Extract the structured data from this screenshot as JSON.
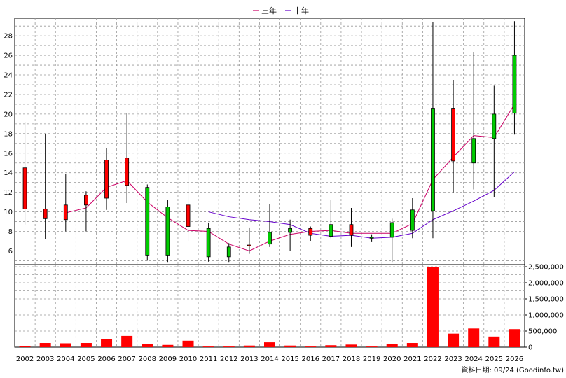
{
  "chart_data": [
    {
      "type": "candlestick",
      "legend": [
        {
          "name": "三年",
          "color": "#cc0066"
        },
        {
          "name": "十年",
          "color": "#6600cc"
        }
      ],
      "legend_position": "top-center",
      "ylim": [
        4.6,
        29.8
      ],
      "yticks": [
        6,
        8,
        10,
        12,
        14,
        16,
        18,
        20,
        22,
        24,
        26,
        28
      ],
      "grid": true,
      "categories": [
        "2002",
        "2003",
        "2004",
        "2005",
        "2006",
        "2007",
        "2008",
        "2009",
        "2010",
        "2011",
        "2012",
        "2013",
        "2014",
        "2015",
        "2016",
        "2017",
        "2018",
        "2019",
        "2020",
        "2021",
        "2022",
        "2023",
        "2024",
        "2025",
        "2026"
      ],
      "ohlc": [
        {
          "open": 10.3,
          "high": 19.2,
          "low": 8.7,
          "close": 14.5
        },
        {
          "open": 9.3,
          "high": 18.0,
          "low": 7.2,
          "close": 10.3
        },
        {
          "open": 9.2,
          "high": 13.9,
          "low": 8.0,
          "close": 10.7
        },
        {
          "open": 10.7,
          "high": 12.1,
          "low": 8.0,
          "close": 11.7
        },
        {
          "open": 11.4,
          "high": 16.5,
          "low": 10.2,
          "close": 15.3
        },
        {
          "open": 12.7,
          "high": 20.1,
          "low": 10.9,
          "close": 15.5
        },
        {
          "open": 12.5,
          "high": 12.8,
          "low": 5.0,
          "close": 5.5
        },
        {
          "open": 10.5,
          "high": 11.2,
          "low": 4.8,
          "close": 5.5
        },
        {
          "open": 8.5,
          "high": 14.2,
          "low": 7.0,
          "close": 10.7
        },
        {
          "open": 8.3,
          "high": 8.9,
          "low": 4.9,
          "close": 5.4
        },
        {
          "open": 6.4,
          "high": 6.8,
          "low": 4.8,
          "close": 5.4
        },
        {
          "open": 6.5,
          "high": 8.4,
          "low": 5.7,
          "close": 6.6
        },
        {
          "open": 7.9,
          "high": 10.8,
          "low": 6.4,
          "close": 6.7
        },
        {
          "open": 8.3,
          "high": 9.2,
          "low": 6.0,
          "close": 7.9
        },
        {
          "open": 7.6,
          "high": 8.5,
          "low": 7.0,
          "close": 8.3
        },
        {
          "open": 8.7,
          "high": 11.2,
          "low": 7.3,
          "close": 7.5
        },
        {
          "open": 7.6,
          "high": 10.4,
          "low": 6.4,
          "close": 8.7
        },
        {
          "open": 7.4,
          "high": 7.7,
          "low": 6.9,
          "close": 7.3
        },
        {
          "open": 8.9,
          "high": 9.3,
          "low": 4.8,
          "close": 7.4
        },
        {
          "open": 10.2,
          "high": 11.4,
          "low": 7.3,
          "close": 8.1
        },
        {
          "open": 20.6,
          "high": 29.4,
          "low": 7.3,
          "close": 10.1
        },
        {
          "open": 15.2,
          "high": 23.5,
          "low": 12.0,
          "close": 20.6
        },
        {
          "open": 17.5,
          "high": 26.3,
          "low": 12.3,
          "close": 15.0
        },
        {
          "open": 20.0,
          "high": 22.9,
          "low": 11.5,
          "close": 17.5
        },
        {
          "open": 26.0,
          "high": 29.5,
          "low": 17.9,
          "close": 20.1
        }
      ],
      "ma3": [
        null,
        null,
        9.9,
        10.4,
        12.5,
        13.2,
        11.0,
        9.4,
        8.1,
        8.0,
        6.7,
        6.0,
        7.0,
        7.7,
        8.0,
        8.1,
        7.8,
        7.8,
        7.8,
        8.8,
        13.3,
        15.6,
        17.8,
        17.6,
        21.0
      ],
      "ma10": [
        null,
        null,
        null,
        null,
        null,
        null,
        null,
        null,
        null,
        10.0,
        9.5,
        9.2,
        9.0,
        8.7,
        7.8,
        7.5,
        7.6,
        7.3,
        7.4,
        7.8,
        9.2,
        10.1,
        11.1,
        12.2,
        14.1
      ],
      "colors": {
        "up": "#ff0000",
        "down": "#00cc00",
        "volume": "#ff0000",
        "grid": "#999999"
      }
    },
    {
      "type": "bar",
      "categories": [
        "2002",
        "2003",
        "2004",
        "2005",
        "2006",
        "2007",
        "2008",
        "2009",
        "2010",
        "2011",
        "2012",
        "2013",
        "2014",
        "2015",
        "2016",
        "2017",
        "2018",
        "2019",
        "2020",
        "2021",
        "2022",
        "2023",
        "2024",
        "2025",
        "2026"
      ],
      "values": [
        40000,
        130000,
        120000,
        130000,
        260000,
        350000,
        90000,
        70000,
        200000,
        20000,
        20000,
        50000,
        150000,
        50000,
        20000,
        60000,
        80000,
        20000,
        100000,
        130000,
        2480000,
        420000,
        580000,
        330000,
        560000
      ],
      "ylim": [
        0,
        2500000
      ],
      "yticks": [
        0,
        500000,
        1000000,
        1500000,
        2000000,
        2500000
      ],
      "ytick_labels": [
        "0",
        "500,000",
        "1,000,000",
        "1,500,000",
        "2,000,000",
        "2,500,000"
      ]
    }
  ],
  "footer": {
    "source": "資料日期: 09/24  (Goodinfo.tw)"
  }
}
